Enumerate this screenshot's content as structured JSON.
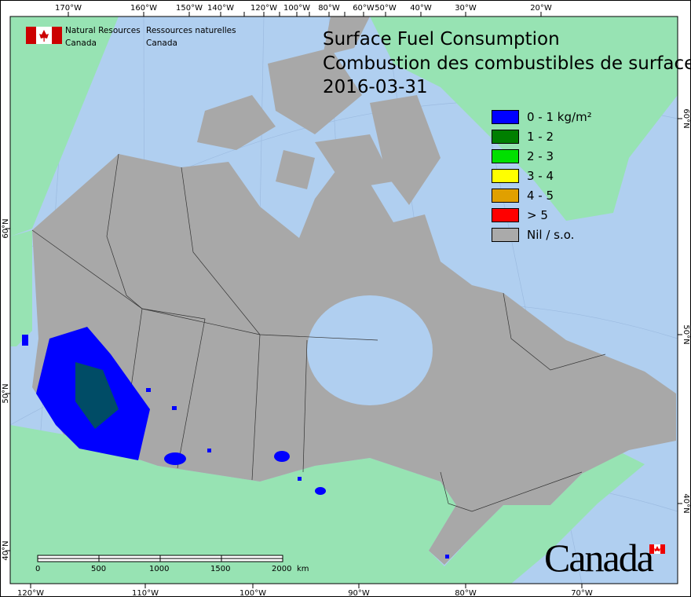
{
  "title": {
    "line1": "Surface Fuel Consumption",
    "line2": "Combustion des combustibles de surface",
    "date": "2016-03-31"
  },
  "agency": {
    "en_line1": "Natural Resources",
    "en_line2": "Canada",
    "fr_line1": "Ressources naturelles",
    "fr_line2": "Canada"
  },
  "wordmark": "Canada",
  "legend": [
    {
      "label": "0 - 1 kg/m²",
      "color": "#0000ff"
    },
    {
      "label": "1 - 2",
      "color": "#007f00"
    },
    {
      "label": "2 - 3",
      "color": "#00e000"
    },
    {
      "label": "3 - 4",
      "color": "#ffff00"
    },
    {
      "label": "4 - 5",
      "color": "#e0a000"
    },
    {
      "label": "> 5",
      "color": "#ff0000"
    },
    {
      "label": "Nil / s.o.",
      "color": "#aaaaaa"
    }
  ],
  "axes": {
    "top": [
      "170°W",
      "160°W",
      "150°W",
      "140°W",
      "120°W",
      "100°W",
      "80°W",
      "60°W",
      "50°W",
      "40°W",
      "30°W",
      "20°W"
    ],
    "bottom": [
      "120°W",
      "110°W",
      "100°W",
      "90°W",
      "80°W",
      "70°W"
    ],
    "left": [
      "60°N",
      "50°N",
      "40°N"
    ],
    "right": [
      "60°N",
      "50°N",
      "40°N"
    ]
  },
  "scalebar": {
    "labels": [
      "0",
      "500",
      "1000",
      "1500",
      "2000"
    ],
    "unit": "km"
  },
  "colors": {
    "water": "#b0cff0",
    "land_other": "#97e3b3",
    "canada": "#a8a8a8"
  }
}
